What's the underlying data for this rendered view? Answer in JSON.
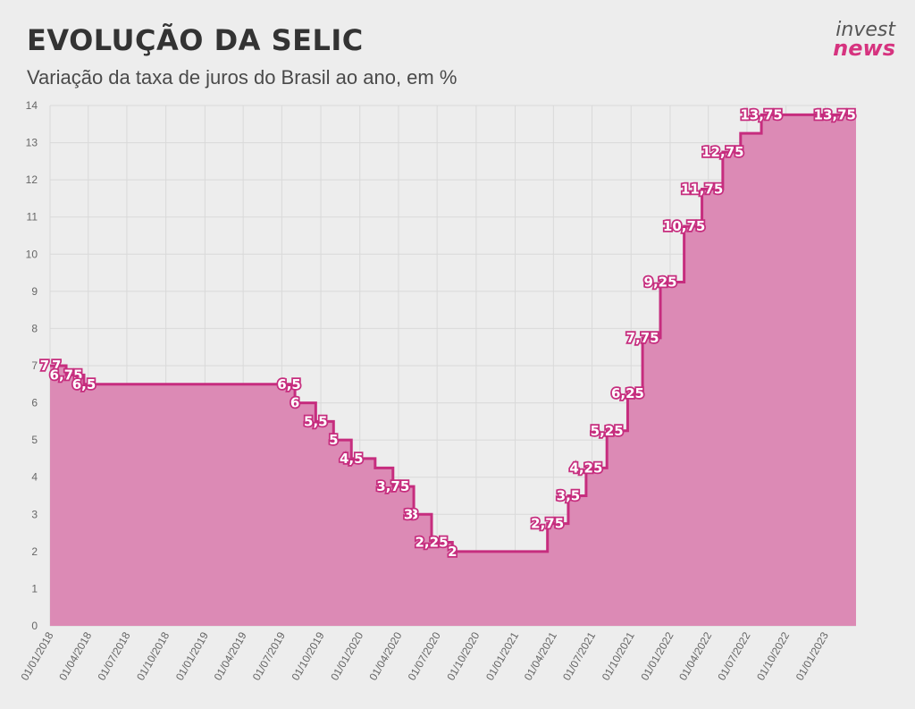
{
  "header": {
    "title": "EVOLUÇÃO DA SELIC",
    "subtitle": "Variação da taxa de juros do Brasil ao ano, em %"
  },
  "logo": {
    "line1": "invest",
    "line2": "news"
  },
  "colors": {
    "area": "#dc8ab5",
    "line": "#c62d7e",
    "grid": "#d9d9d9",
    "background": "#ededed"
  },
  "chart_data": {
    "type": "area",
    "step": true,
    "title": "EVOLUÇÃO DA SELIC",
    "subtitle": "Variação da taxa de juros do Brasil ao ano, em %",
    "xlabel": "",
    "ylabel": "",
    "ylim": [
      0,
      14
    ],
    "xlim": [
      "2018-01-01",
      "2023-03-15"
    ],
    "grid": true,
    "y_ticks": [
      0,
      1,
      2,
      3,
      4,
      5,
      6,
      7,
      8,
      9,
      10,
      11,
      12,
      13,
      14
    ],
    "x_ticks": [
      "2018-01-01",
      "2018-04-01",
      "2018-07-01",
      "2018-10-01",
      "2019-01-01",
      "2019-04-01",
      "2019-07-01",
      "2019-10-01",
      "2020-01-01",
      "2020-04-01",
      "2020-07-01",
      "2020-10-01",
      "2021-01-01",
      "2021-04-01",
      "2021-07-01",
      "2021-10-01",
      "2022-01-01",
      "2022-04-01",
      "2022-07-01",
      "2022-10-01",
      "2023-01-01"
    ],
    "x_tick_labels": [
      "01/01/2018",
      "01/04/2018",
      "01/07/2018",
      "01/10/2018",
      "01/01/2019",
      "01/04/2019",
      "01/07/2019",
      "01/10/2019",
      "01/01/2020",
      "01/04/2020",
      "01/07/2020",
      "01/10/2020",
      "01/01/2021",
      "01/04/2021",
      "01/07/2021",
      "01/10/2021",
      "01/01/2022",
      "01/04/2022",
      "01/07/2022",
      "01/10/2022",
      "01/01/2023"
    ],
    "points": [
      {
        "x": "2018-01-01",
        "y": 7,
        "label": "7"
      },
      {
        "x": "2018-02-08",
        "y": 6.75,
        "label": "6,75"
      },
      {
        "x": "2018-03-22",
        "y": 6.5,
        "label": "6,5"
      },
      {
        "x": "2019-08-01",
        "y": 6,
        "label": "6"
      },
      {
        "x": "2019-09-19",
        "y": 5.5,
        "label": "5,5"
      },
      {
        "x": "2019-10-31",
        "y": 5,
        "label": "5"
      },
      {
        "x": "2019-12-12",
        "y": 4.5,
        "label": "4,5"
      },
      {
        "x": "2020-02-06",
        "y": 4.25,
        "label": ""
      },
      {
        "x": "2020-03-19",
        "y": 3.75,
        "label": "3,75"
      },
      {
        "x": "2020-05-07",
        "y": 3,
        "label": "3"
      },
      {
        "x": "2020-06-18",
        "y": 2.25,
        "label": "2,25"
      },
      {
        "x": "2020-08-06",
        "y": 2,
        "label": "2"
      },
      {
        "x": "2021-03-18",
        "y": 2.75,
        "label": "2,75"
      },
      {
        "x": "2021-05-06",
        "y": 3.5,
        "label": "3,5"
      },
      {
        "x": "2021-06-17",
        "y": 4.25,
        "label": "4,25"
      },
      {
        "x": "2021-08-05",
        "y": 5.25,
        "label": "5,25"
      },
      {
        "x": "2021-09-23",
        "y": 6.25,
        "label": "6,25"
      },
      {
        "x": "2021-10-28",
        "y": 7.75,
        "label": "7,75"
      },
      {
        "x": "2021-12-09",
        "y": 9.25,
        "label": "9,25"
      },
      {
        "x": "2022-02-03",
        "y": 10.75,
        "label": "10,75"
      },
      {
        "x": "2022-03-17",
        "y": 11.75,
        "label": "11,75"
      },
      {
        "x": "2022-05-05",
        "y": 12.75,
        "label": "12,75"
      },
      {
        "x": "2022-06-16",
        "y": 13.25,
        "label": ""
      },
      {
        "x": "2022-08-04",
        "y": 13.75,
        "label": "13,75"
      },
      {
        "x": "2023-03-15",
        "y": 13.75,
        "label": "13,75"
      }
    ],
    "extra_labels": [
      {
        "x": "2018-01-01",
        "y": 7,
        "label": "7"
      },
      {
        "x": "2019-07-31",
        "y": 6.5,
        "label": "6,5"
      },
      {
        "x": "2020-05-07",
        "y": 3,
        "label": "3"
      }
    ]
  }
}
